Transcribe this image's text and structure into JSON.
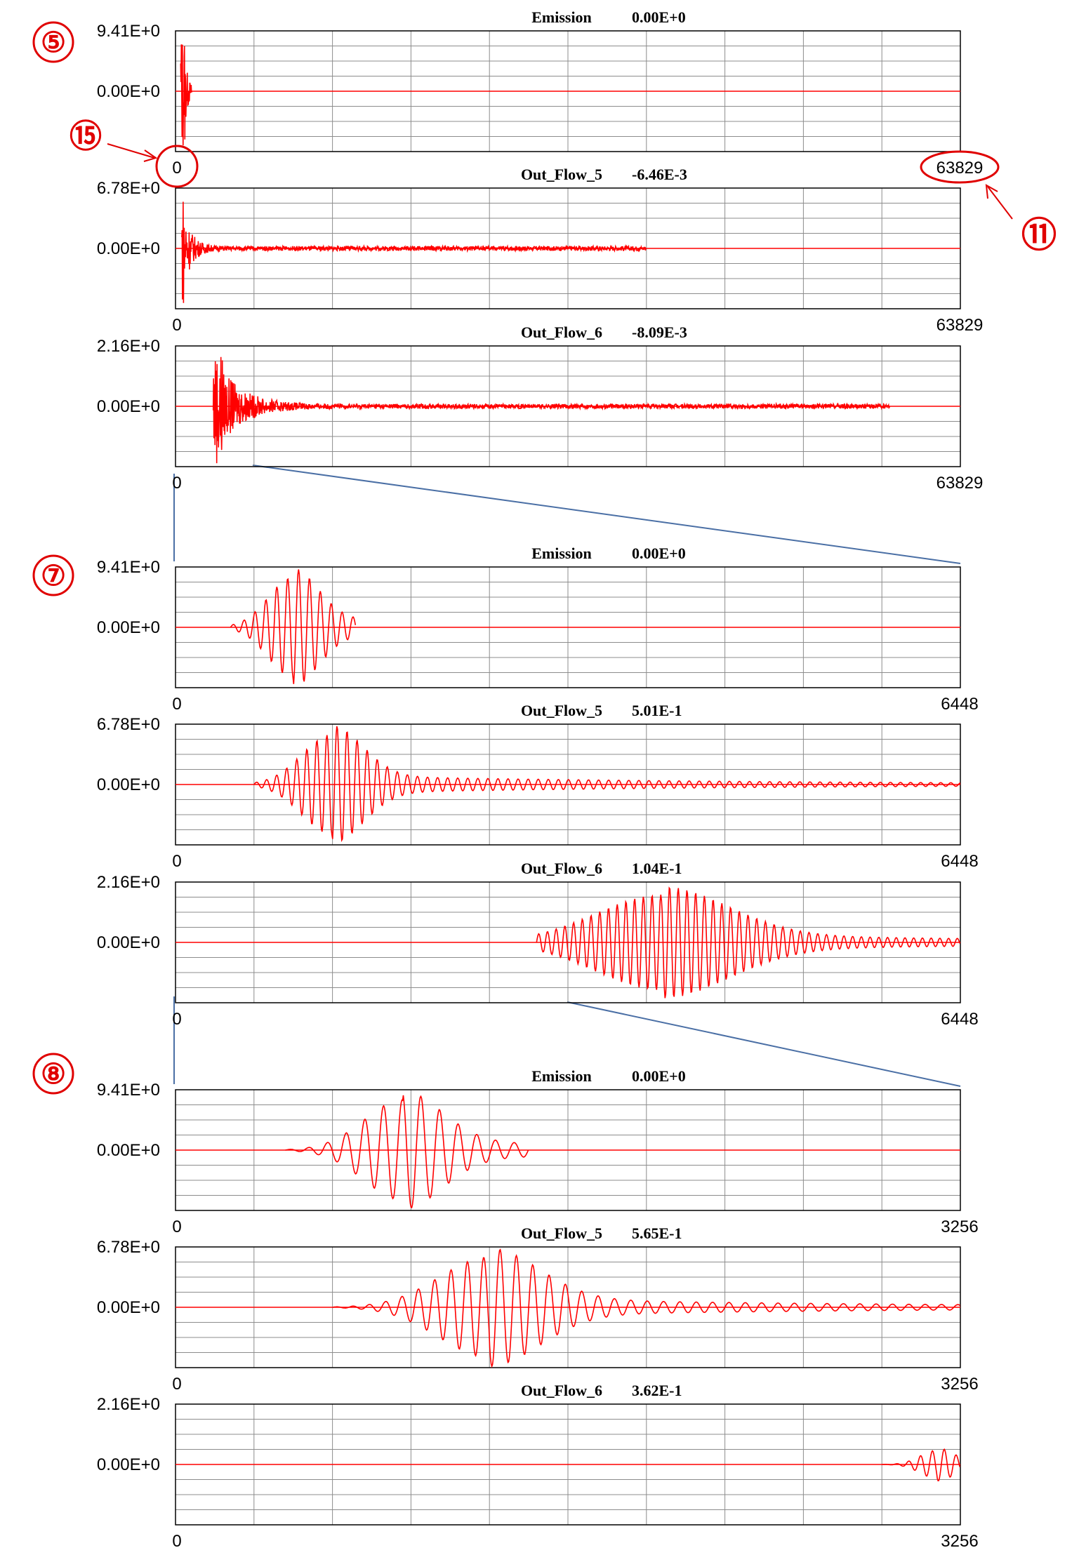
{
  "colors": {
    "trace": "#ff0000",
    "zero_line": "#ff0000",
    "grid": "#8c8c8c",
    "frame": "#000000",
    "zoom_line": "#4a6fa5",
    "callout": "#e00000"
  },
  "callouts": [
    {
      "id": "5",
      "text": "⑤"
    },
    {
      "id": "15",
      "text": "⑮"
    },
    {
      "id": "11",
      "text": "⑪"
    },
    {
      "id": "7",
      "text": "⑦"
    },
    {
      "id": "8",
      "text": "⑧"
    }
  ],
  "chart_data": [
    {
      "type": "line",
      "channel": "Emission",
      "value": "0.00E+0",
      "y_top": "9.41E+0",
      "y_mid": "0.00E+0",
      "x_min": "0",
      "x_max": "63829",
      "series": [
        {
          "values": [
            0
          ]
        }
      ],
      "grid": true
    },
    {
      "type": "line",
      "channel": "Out_Flow_5",
      "value": "-6.46E-3",
      "y_top": "6.78E+0",
      "y_mid": "0.00E+0",
      "x_min": "0",
      "x_max": "63829",
      "series": [
        {
          "values": [
            0
          ]
        }
      ],
      "grid": true
    },
    {
      "type": "line",
      "channel": "Out_Flow_6",
      "value": "-8.09E-3",
      "y_top": "2.16E+0",
      "y_mid": "0.00E+0",
      "x_min": "0",
      "x_max": "63829",
      "series": [
        {
          "values": [
            0
          ]
        }
      ],
      "grid": true
    },
    {
      "type": "line",
      "channel": "Emission",
      "value": "0.00E+0",
      "y_top": "9.41E+0",
      "y_mid": "0.00E+0",
      "x_min": "0",
      "x_max": "6448",
      "series": [
        {
          "values": [
            0
          ]
        }
      ],
      "grid": true
    },
    {
      "type": "line",
      "channel": "Out_Flow_5",
      "value": "5.01E-1",
      "y_top": "6.78E+0",
      "y_mid": "0.00E+0",
      "x_min": "0",
      "x_max": "6448",
      "series": [
        {
          "values": [
            0
          ]
        }
      ],
      "grid": true
    },
    {
      "type": "line",
      "channel": "Out_Flow_6",
      "value": "1.04E-1",
      "y_top": "2.16E+0",
      "y_mid": "0.00E+0",
      "x_min": "0",
      "x_max": "6448",
      "series": [
        {
          "values": [
            0
          ]
        }
      ],
      "grid": true
    },
    {
      "type": "line",
      "channel": "Emission",
      "value": "0.00E+0",
      "y_top": "9.41E+0",
      "y_mid": "0.00E+0",
      "x_min": "0",
      "x_max": "3256",
      "series": [
        {
          "values": [
            0
          ]
        }
      ],
      "grid": true
    },
    {
      "type": "line",
      "channel": "Out_Flow_5",
      "value": "5.65E-1",
      "y_top": "6.78E+0",
      "y_mid": "0.00E+0",
      "x_min": "0",
      "x_max": "3256",
      "series": [
        {
          "values": [
            0
          ]
        }
      ],
      "grid": true
    },
    {
      "type": "line",
      "channel": "Out_Flow_6",
      "value": "3.62E-1",
      "y_top": "2.16E+0",
      "y_mid": "0.00E+0",
      "x_min": "0",
      "x_max": "3256",
      "series": [
        {
          "values": [
            0
          ]
        }
      ],
      "grid": true
    }
  ]
}
